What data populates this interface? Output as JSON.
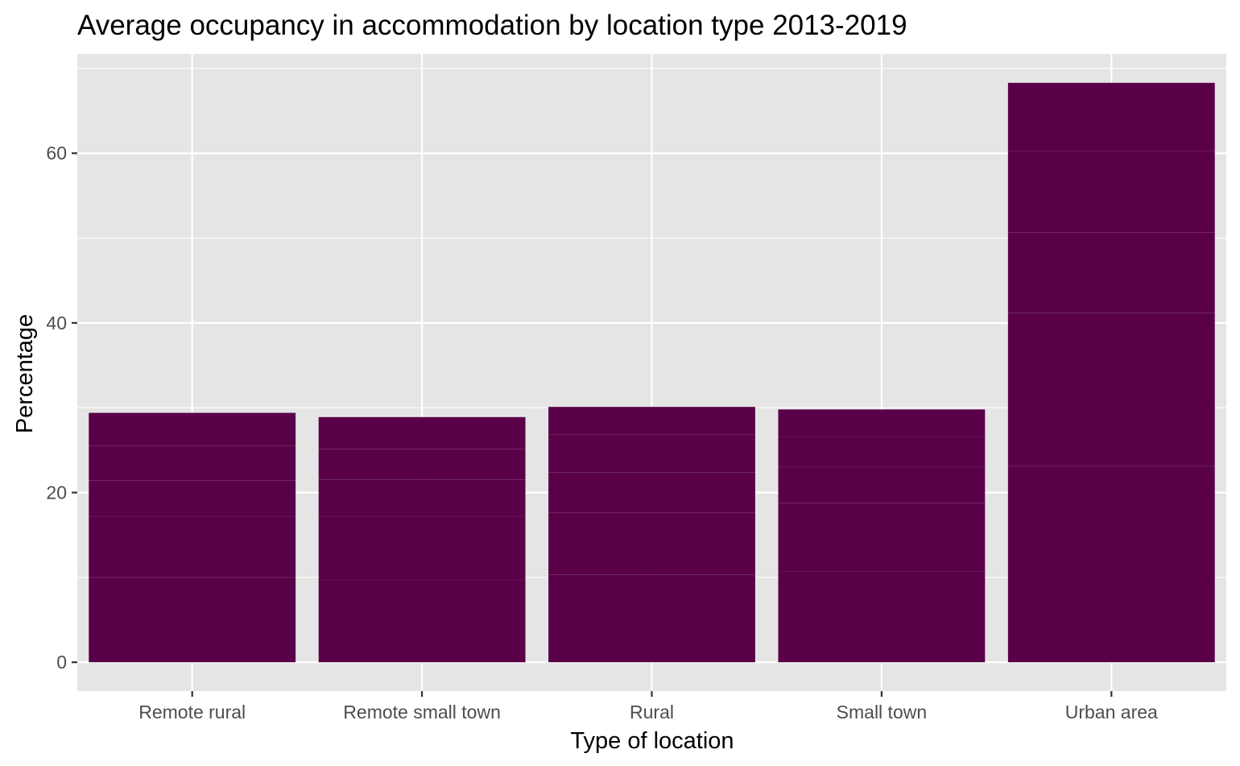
{
  "chart_data": {
    "type": "bar",
    "title": "Average occupancy in accommodation by location type 2013-2019",
    "xlabel": "Type of location",
    "ylabel": "Percentage",
    "categories": [
      "Remote rural",
      "Remote small town",
      "Rural",
      "Small town",
      "Urban area"
    ],
    "values": [
      29.4,
      28.9,
      30.1,
      29.6,
      68.3
    ],
    "stacked_segments": [
      [
        10.0,
        7.2,
        4.2,
        4.1,
        3.9
      ],
      [
        9.7,
        7.5,
        4.3,
        3.6,
        3.8
      ],
      [
        10.3,
        7.3,
        4.8,
        4.4,
        3.3
      ],
      [
        10.7,
        8.1,
        4.2,
        3.6,
        3.2
      ],
      [
        23.1,
        18.1,
        9.5,
        9.6,
        8.0
      ]
    ],
    "ylim": [
      -3.4,
      71.7
    ],
    "yticks": [
      0,
      20,
      40,
      60
    ],
    "ytick_labels": [
      "0",
      "20",
      "40",
      "60"
    ],
    "grid": true,
    "legend": "none",
    "colors": {
      "bar": "#590049",
      "panel_background": "#e5e5e5",
      "grid_line": "#ffffff",
      "tick_text": "#4d4d4d",
      "tick_mark": "#333333"
    }
  }
}
